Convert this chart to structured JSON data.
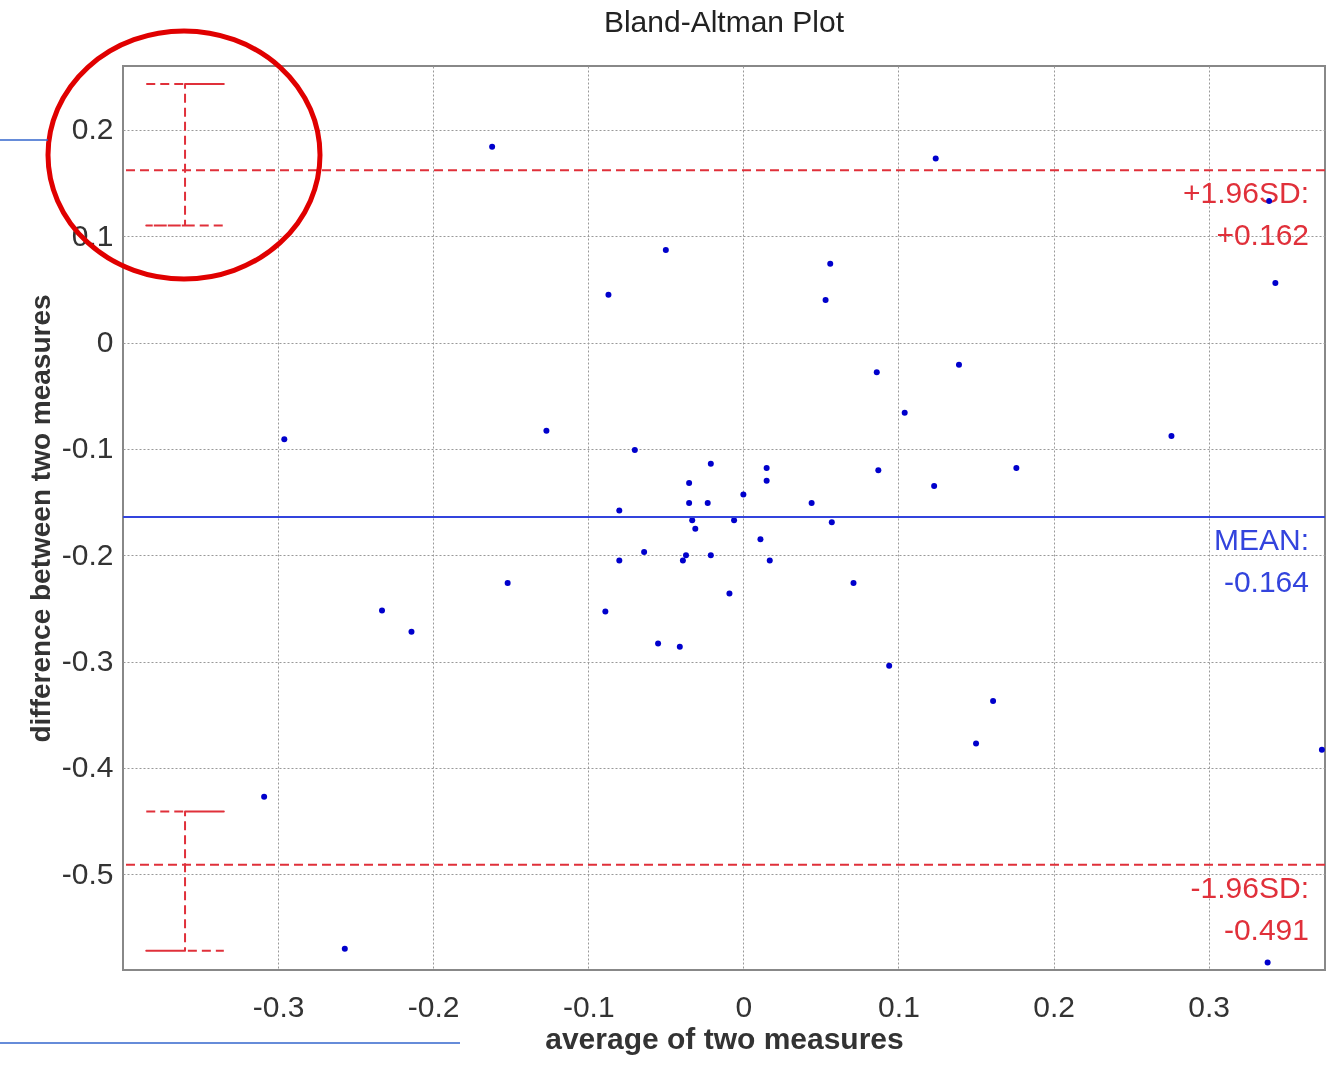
{
  "chart_data": {
    "type": "scatter",
    "title": "Bland-Altman Plot",
    "xlabel": "average of two measures",
    "ylabel": "difference between two measures",
    "xlim": [
      -0.4,
      0.375
    ],
    "ylim": [
      -0.59,
      0.26
    ],
    "xticks": [
      -0.3,
      -0.2,
      -0.1,
      0,
      0.1,
      0.2,
      0.3
    ],
    "yticks": [
      -0.5,
      -0.4,
      -0.3,
      -0.2,
      -0.1,
      0,
      0.1,
      0.2
    ],
    "grid": true,
    "marker": "circle",
    "series": [
      {
        "color": "#0000cc",
        "x": [
          -0.162,
          0.124,
          0.339,
          0.343,
          -0.05,
          0.056,
          -0.087,
          0.053,
          0.086,
          0.139,
          0.104,
          -0.296,
          -0.127,
          -0.07,
          0.276,
          -0.035,
          -0.021,
          0.015,
          0.015,
          0.087,
          0.176,
          0.123,
          -0.08,
          -0.035,
          -0.023,
          0,
          0.044,
          -0.033,
          -0.031,
          -0.006,
          0.057,
          0.011,
          -0.064,
          -0.08,
          -0.037,
          -0.039,
          -0.021,
          0.017,
          -0.152,
          0.071,
          -0.009,
          -0.233,
          -0.089,
          -0.214,
          -0.055,
          -0.041,
          0.094,
          0.161,
          0.15,
          0.373,
          -0.309,
          -0.257,
          0.338
        ],
        "values": [
          0.184,
          0.173,
          0.133,
          0.056,
          0.087,
          0.074,
          0.045,
          0.04,
          -0.028,
          -0.021,
          -0.066,
          -0.091,
          -0.083,
          -0.101,
          -0.088,
          -0.132,
          -0.114,
          -0.118,
          -0.13,
          -0.12,
          -0.118,
          -0.135,
          -0.158,
          -0.151,
          -0.151,
          -0.143,
          -0.151,
          -0.167,
          -0.175,
          -0.167,
          -0.169,
          -0.185,
          -0.197,
          -0.205,
          -0.2,
          -0.205,
          -0.2,
          -0.205,
          -0.226,
          -0.226,
          -0.236,
          -0.252,
          -0.253,
          -0.272,
          -0.283,
          -0.286,
          -0.304,
          -0.337,
          -0.377,
          -0.383,
          -0.427,
          -0.57,
          -0.583
        ]
      },
      {
        "type": "line",
        "color": "#e0303a",
        "marker": "none",
        "line_style": "dashed",
        "x": [
          -0.385,
          -0.335,
          -0.36,
          -0.36,
          -0.385,
          -0.335
        ],
        "values": [
          0.243,
          0.243,
          0.243,
          0.11,
          0.11,
          0.11
        ]
      },
      {
        "type": "line",
        "color": "#e0303a",
        "marker": "none",
        "line_style": "dashed",
        "x": [
          -0.385,
          -0.335,
          -0.36,
          -0.36,
          -0.385,
          -0.335
        ],
        "values": [
          -0.441,
          -0.441,
          -0.441,
          -0.572,
          -0.572,
          -0.572
        ]
      }
    ],
    "ref_lines": [
      {
        "axis": "y",
        "value": 0.162,
        "label": "+1.96SD:\n+0.162",
        "color": "#e0303a",
        "line_style": "dashed"
      },
      {
        "axis": "y",
        "value": -0.164,
        "label": "MEAN:\n-0.164",
        "color": "#3344dd",
        "line_style": "solid"
      },
      {
        "axis": "y",
        "value": -0.491,
        "label": "-1.96SD:\n-0.491",
        "color": "#e0303a",
        "line_style": "dashed"
      }
    ]
  }
}
